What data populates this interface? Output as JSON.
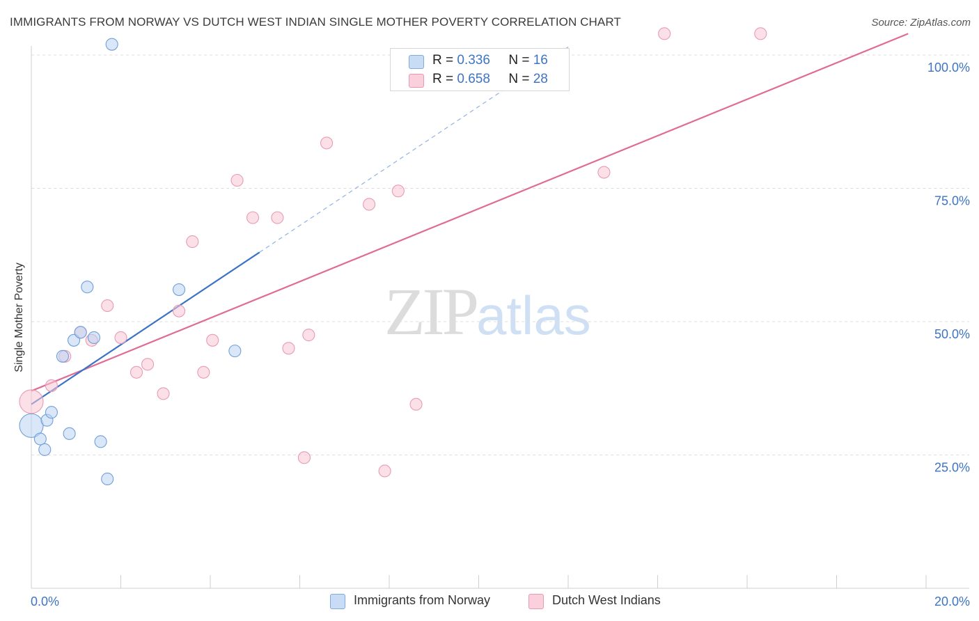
{
  "title": "IMMIGRANTS FROM NORWAY VS DUTCH WEST INDIAN SINGLE MOTHER POVERTY CORRELATION CHART",
  "source": "Source: ZipAtlas.com",
  "watermark": {
    "part1": "ZIP",
    "part2": "atlas"
  },
  "legend_top": [
    {
      "r_label": "R =",
      "r_value": "0.336",
      "n_label": "N =",
      "n_value": "16",
      "color": "#a9c8f0"
    },
    {
      "r_label": "R =",
      "r_value": "0.658",
      "n_label": "N =",
      "n_value": "28",
      "color": "#f5b8ca"
    }
  ],
  "legend_bottom": [
    {
      "label": "Immigrants from Norway",
      "color": "#a9c8f0"
    },
    {
      "label": "Dutch West Indians",
      "color": "#f5b8ca"
    }
  ],
  "chart_data": {
    "type": "scatter",
    "xlabel": "",
    "ylabel": "Single Mother Poverty",
    "xlim": [
      0,
      20
    ],
    "ylim": [
      0,
      100
    ],
    "x_tick_labels": [
      "0.0%",
      "20.0%"
    ],
    "y_ticks": [
      25,
      50,
      75,
      100
    ],
    "y_tick_labels": [
      "25.0%",
      "50.0%",
      "75.0%",
      "100.0%"
    ],
    "grid": true,
    "series": [
      {
        "name": "Immigrants from Norway",
        "color": "#6a9bd8",
        "fill": "#a9c8f0",
        "points": [
          {
            "x": 0.0,
            "y": 30.5,
            "big": true
          },
          {
            "x": 0.2,
            "y": 28.0
          },
          {
            "x": 0.3,
            "y": 26.0
          },
          {
            "x": 0.35,
            "y": 31.5
          },
          {
            "x": 0.45,
            "y": 33.0
          },
          {
            "x": 0.7,
            "y": 43.5
          },
          {
            "x": 0.85,
            "y": 29.0
          },
          {
            "x": 0.95,
            "y": 46.5
          },
          {
            "x": 1.1,
            "y": 48.0
          },
          {
            "x": 1.25,
            "y": 56.5
          },
          {
            "x": 1.4,
            "y": 47.0
          },
          {
            "x": 1.55,
            "y": 27.5
          },
          {
            "x": 1.7,
            "y": 20.5
          },
          {
            "x": 1.8,
            "y": 102.0
          },
          {
            "x": 3.3,
            "y": 56.0
          },
          {
            "x": 4.55,
            "y": 44.5
          }
        ],
        "trend": {
          "x0": 0.0,
          "y0": 34.5,
          "x1": 5.1,
          "y1": 63.0,
          "dash_x1": 12.0,
          "dash_y1": 101.5
        }
      },
      {
        "name": "Dutch West Indians",
        "color": "#e882a4",
        "fill": "#f5b8ca",
        "points": [
          {
            "x": 0.0,
            "y": 35.0,
            "big": true
          },
          {
            "x": 0.45,
            "y": 38.0
          },
          {
            "x": 0.75,
            "y": 43.5
          },
          {
            "x": 1.1,
            "y": 48.0
          },
          {
            "x": 1.35,
            "y": 46.5
          },
          {
            "x": 1.7,
            "y": 53.0
          },
          {
            "x": 2.0,
            "y": 47.0
          },
          {
            "x": 2.35,
            "y": 40.5
          },
          {
            "x": 2.6,
            "y": 42.0
          },
          {
            "x": 2.95,
            "y": 36.5
          },
          {
            "x": 3.3,
            "y": 52.0
          },
          {
            "x": 3.6,
            "y": 65.0
          },
          {
            "x": 3.85,
            "y": 40.5
          },
          {
            "x": 4.05,
            "y": 46.5
          },
          {
            "x": 4.6,
            "y": 76.5
          },
          {
            "x": 4.95,
            "y": 69.5
          },
          {
            "x": 5.5,
            "y": 69.5
          },
          {
            "x": 5.75,
            "y": 45.0
          },
          {
            "x": 6.1,
            "y": 24.5
          },
          {
            "x": 6.2,
            "y": 47.5
          },
          {
            "x": 6.6,
            "y": 83.5
          },
          {
            "x": 7.55,
            "y": 72.0
          },
          {
            "x": 7.9,
            "y": 22.0
          },
          {
            "x": 8.2,
            "y": 74.5
          },
          {
            "x": 8.6,
            "y": 34.5
          },
          {
            "x": 12.8,
            "y": 78.0
          },
          {
            "x": 14.15,
            "y": 104.0
          },
          {
            "x": 16.3,
            "y": 104.0
          }
        ],
        "trend": {
          "x0": 0.0,
          "y0": 37.0,
          "x1": 19.6,
          "y1": 104.0
        }
      }
    ]
  }
}
